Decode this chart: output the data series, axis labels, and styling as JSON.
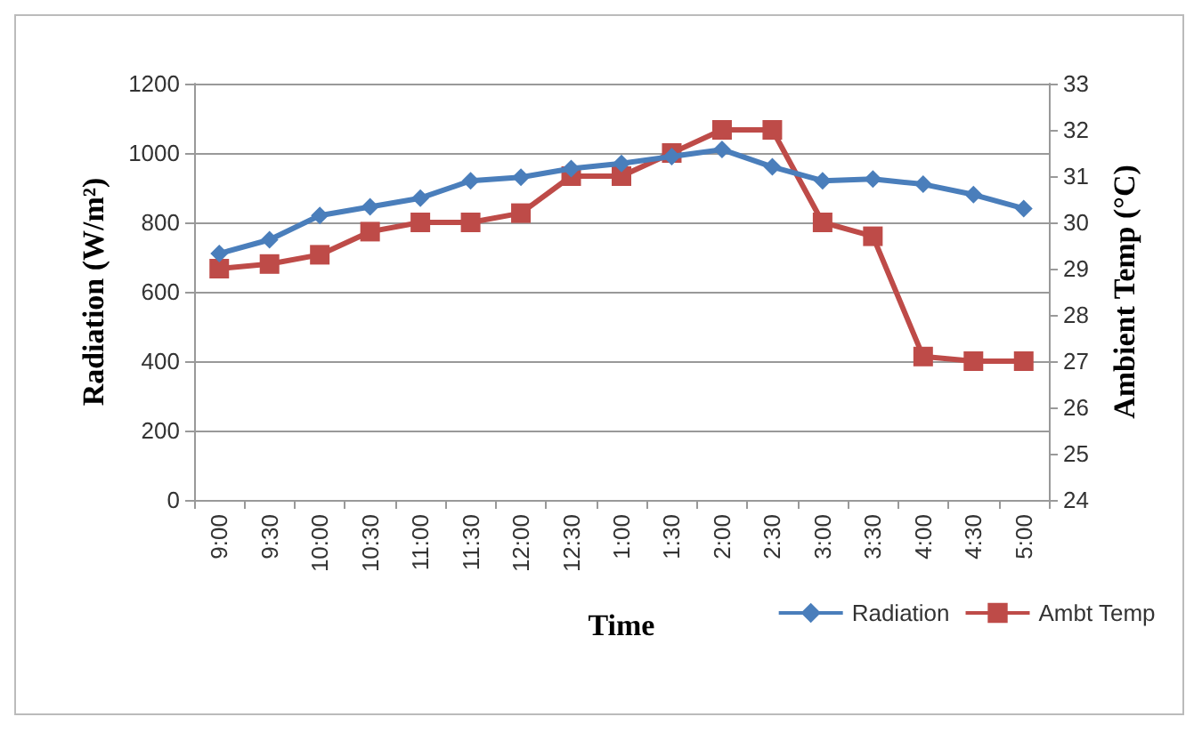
{
  "chart_data": {
    "type": "line",
    "xlabel": "Time",
    "ylabel": "Radiation (W/m²)",
    "y2label": "Ambient Temp (°C)",
    "categories": [
      "9:00",
      "9:30",
      "10:00",
      "10:30",
      "11:00",
      "11:30",
      "12:00",
      "12:30",
      "1:00",
      "1:30",
      "2:00",
      "2:30",
      "3:00",
      "3:30",
      "4:00",
      "4:30",
      "5:00"
    ],
    "series": [
      {
        "name": "Radiation",
        "color": "#4a7ebb",
        "marker": "diamond",
        "values": [
          710,
          750,
          820,
          845,
          870,
          920,
          930,
          955,
          970,
          990,
          1010,
          960,
          920,
          925,
          910,
          880,
          840
        ]
      },
      {
        "name": "Ambt Temp",
        "color": "#be4b48",
        "marker": "square",
        "axis": "y2",
        "values": [
          29,
          29.1,
          29.3,
          29.8,
          30,
          30,
          30.2,
          31,
          31,
          31.5,
          32,
          32,
          30,
          29.7,
          27.1,
          27,
          27
        ]
      }
    ],
    "ylim": [
      0,
      1200
    ],
    "yticks": [
      0,
      200,
      400,
      600,
      800,
      1000,
      1200
    ],
    "y2lim": [
      24,
      33
    ],
    "y2ticks": [
      24,
      25,
      26,
      27,
      28,
      29,
      30,
      31,
      32,
      33
    ],
    "grid": "y",
    "legend": "bottom right"
  }
}
